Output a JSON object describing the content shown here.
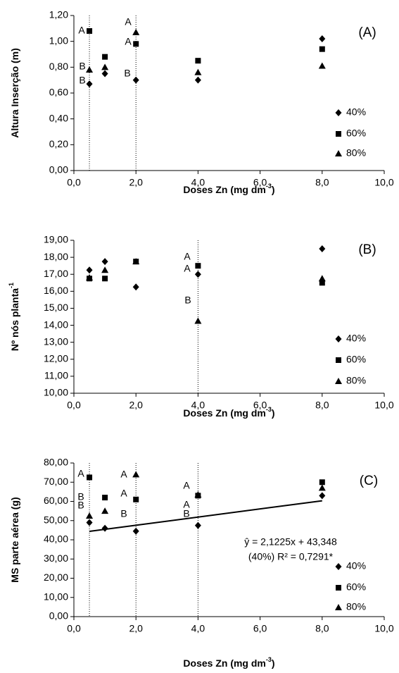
{
  "chart_data": [
    {
      "type": "scatter",
      "panel_label": "(A)",
      "y_label": {
        "text": "Altura Inserção (m)"
      },
      "x_label": {
        "text": "Doses Zn (mg dm",
        "superscript": "-3",
        "suffix": ")"
      },
      "x": [
        0.5,
        1,
        2,
        4,
        8
      ],
      "series": [
        {
          "name": "40%",
          "color": "#000000",
          "marker": "diamond",
          "values": [
            0.67,
            0.75,
            0.7,
            0.7,
            1.02
          ]
        },
        {
          "name": "60%",
          "color": "#000000",
          "marker": "square",
          "values": [
            1.08,
            0.88,
            0.98,
            0.85,
            0.94
          ]
        },
        {
          "name": "80%",
          "color": "#000000",
          "marker": "triangle",
          "values": [
            0.78,
            0.8,
            1.07,
            0.76,
            0.81
          ]
        }
      ],
      "vlines": [
        0.5,
        2
      ],
      "annotations": [
        "A",
        "B",
        "B",
        "A",
        "A",
        "B"
      ],
      "xlim": [
        0,
        10
      ],
      "xticks": [
        {
          "value": 0,
          "label": "0,0"
        },
        {
          "value": 2,
          "label": "2,0"
        },
        {
          "value": 4,
          "label": "4,0"
        },
        {
          "value": 6,
          "label": "6,0"
        },
        {
          "value": 8,
          "label": "8,0"
        },
        {
          "value": 10,
          "label": "10,0"
        }
      ],
      "ylim": [
        0,
        1.2
      ],
      "yticks": [
        {
          "value": 0,
          "label": "0,00"
        },
        {
          "value": 0.2,
          "label": "0,20"
        },
        {
          "value": 0.4,
          "label": "0,40"
        },
        {
          "value": 0.6,
          "label": "0,60"
        },
        {
          "value": 0.8,
          "label": "0,80"
        },
        {
          "value": 1.0,
          "label": "1,00"
        },
        {
          "value": 1.2,
          "label": "1,20"
        }
      ]
    },
    {
      "type": "scatter",
      "panel_label": "(B)",
      "y_label": {
        "text": "Nº nós planta",
        "superscript": "-1"
      },
      "x_label": {
        "text": "Doses Zn (mg dm",
        "superscript": "-3",
        "suffix": ")"
      },
      "x": [
        0.5,
        1,
        2,
        4,
        8
      ],
      "series": [
        {
          "name": "40%",
          "color": "#000000",
          "marker": "diamond",
          "values": [
            17.25,
            17.75,
            16.25,
            17.0,
            18.5
          ]
        },
        {
          "name": "60%",
          "color": "#000000",
          "marker": "square",
          "values": [
            16.75,
            16.75,
            17.75,
            17.5,
            16.5
          ]
        },
        {
          "name": "80%",
          "color": "#000000",
          "marker": "triangle",
          "values": [
            16.8,
            17.25,
            17.75,
            14.25,
            16.75
          ]
        }
      ],
      "vlines": [
        4
      ],
      "annotations": [
        "A",
        "A",
        "B"
      ],
      "xlim": [
        0,
        10
      ],
      "xticks": [
        {
          "value": 0,
          "label": "0,0"
        },
        {
          "value": 2,
          "label": "2,0"
        },
        {
          "value": 4,
          "label": "4,0"
        },
        {
          "value": 6,
          "label": "6,0"
        },
        {
          "value": 8,
          "label": "8,0"
        },
        {
          "value": 10,
          "label": "10,0"
        }
      ],
      "ylim": [
        10,
        19
      ],
      "yticks": [
        {
          "value": 10,
          "label": "10,00"
        },
        {
          "value": 11,
          "label": "11,00"
        },
        {
          "value": 12,
          "label": "12,00"
        },
        {
          "value": 13,
          "label": "13,00"
        },
        {
          "value": 14,
          "label": "14,00"
        },
        {
          "value": 15,
          "label": "15,00"
        },
        {
          "value": 16,
          "label": "16,00"
        },
        {
          "value": 17,
          "label": "17,00"
        },
        {
          "value": 18,
          "label": "18,00"
        },
        {
          "value": 19,
          "label": "19,00"
        }
      ]
    },
    {
      "type": "scatter",
      "panel_label": "(C)",
      "y_label": {
        "text": "MS parte aérea (g)"
      },
      "x_label": {
        "text": "Doses Zn (mg dm",
        "superscript": "-3",
        "suffix": ")"
      },
      "x": [
        0.5,
        1,
        2,
        4,
        8
      ],
      "series": [
        {
          "name": "40%",
          "color": "#000000",
          "marker": "diamond",
          "values": [
            49,
            46,
            44.5,
            47.5,
            63
          ]
        },
        {
          "name": "60%",
          "color": "#000000",
          "marker": "square",
          "values": [
            72.5,
            62,
            61,
            63,
            70
          ]
        },
        {
          "name": "80%",
          "color": "#000000",
          "marker": "triangle",
          "values": [
            52.5,
            55,
            74,
            63.5,
            67
          ]
        }
      ],
      "vlines": [
        0.5,
        2,
        4
      ],
      "trendline": {
        "x": [
          0.5,
          8
        ],
        "y": [
          44.41,
          60.33
        ]
      },
      "equation": [
        "ŷ = 2,1225x + 43,348",
        "(40%) R² = 0,7291*"
      ],
      "annotations": [
        "A",
        "B",
        "B",
        "A",
        "A",
        "B",
        "A",
        "A",
        "B"
      ],
      "xlim": [
        0,
        10
      ],
      "xticks": [
        {
          "value": 0,
          "label": "0,0"
        },
        {
          "value": 2,
          "label": "2,0"
        },
        {
          "value": 4,
          "label": "4,0"
        },
        {
          "value": 6,
          "label": "6,0"
        },
        {
          "value": 8,
          "label": "8,0"
        },
        {
          "value": 10,
          "label": "10,0"
        }
      ],
      "ylim": [
        0,
        80
      ],
      "yticks": [
        {
          "value": 0,
          "label": "0,00"
        },
        {
          "value": 10,
          "label": "10,00"
        },
        {
          "value": 20,
          "label": "20,00"
        },
        {
          "value": 30,
          "label": "30,00"
        },
        {
          "value": 40,
          "label": "40,00"
        },
        {
          "value": 50,
          "label": "50,00"
        },
        {
          "value": 60,
          "label": "60,00"
        },
        {
          "value": 70,
          "label": "70,00"
        },
        {
          "value": 80,
          "label": "80,00"
        }
      ]
    }
  ]
}
